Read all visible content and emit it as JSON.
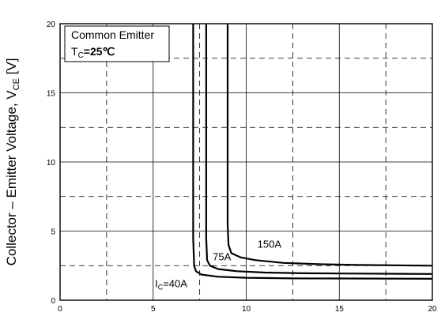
{
  "chart_data": {
    "type": "line",
    "title": "",
    "xlabel": "",
    "ylabel": "Collector – Emitter Voltage, V",
    "ylabel_sub": "CE",
    "ylabel_unit": " [V]",
    "xlim": [
      0,
      20
    ],
    "ylim": [
      0,
      20
    ],
    "x_ticks": [
      0,
      5,
      10,
      15,
      20
    ],
    "y_ticks": [
      0,
      5,
      10,
      15,
      20
    ],
    "grid": true,
    "annotation": {
      "line1": "Common Emitter",
      "line2_prefix": "T",
      "line2_sub": "C",
      "line2_suffix": "=25℃"
    },
    "series": [
      {
        "label_prefix": "I",
        "label_sub": "C",
        "label_suffix": "=40A",
        "x": [
          7.15,
          7.15,
          7.2,
          7.3,
          7.6,
          8.5,
          10,
          12.5,
          15,
          20
        ],
        "y": [
          20,
          4.5,
          2.5,
          2.1,
          1.85,
          1.7,
          1.62,
          1.58,
          1.57,
          1.55
        ]
      },
      {
        "label": "75A",
        "x": [
          7.85,
          7.85,
          7.9,
          8.05,
          8.5,
          9.5,
          11,
          13,
          15,
          20
        ],
        "y": [
          20,
          4.5,
          2.9,
          2.5,
          2.25,
          2.1,
          2.0,
          1.95,
          1.93,
          1.9
        ]
      },
      {
        "label": "150A",
        "x": [
          9.0,
          9.0,
          9.05,
          9.2,
          9.7,
          10.5,
          12,
          14,
          16,
          20
        ],
        "y": [
          20,
          5.5,
          4.0,
          3.4,
          3.1,
          2.9,
          2.7,
          2.6,
          2.55,
          2.5
        ]
      }
    ]
  }
}
